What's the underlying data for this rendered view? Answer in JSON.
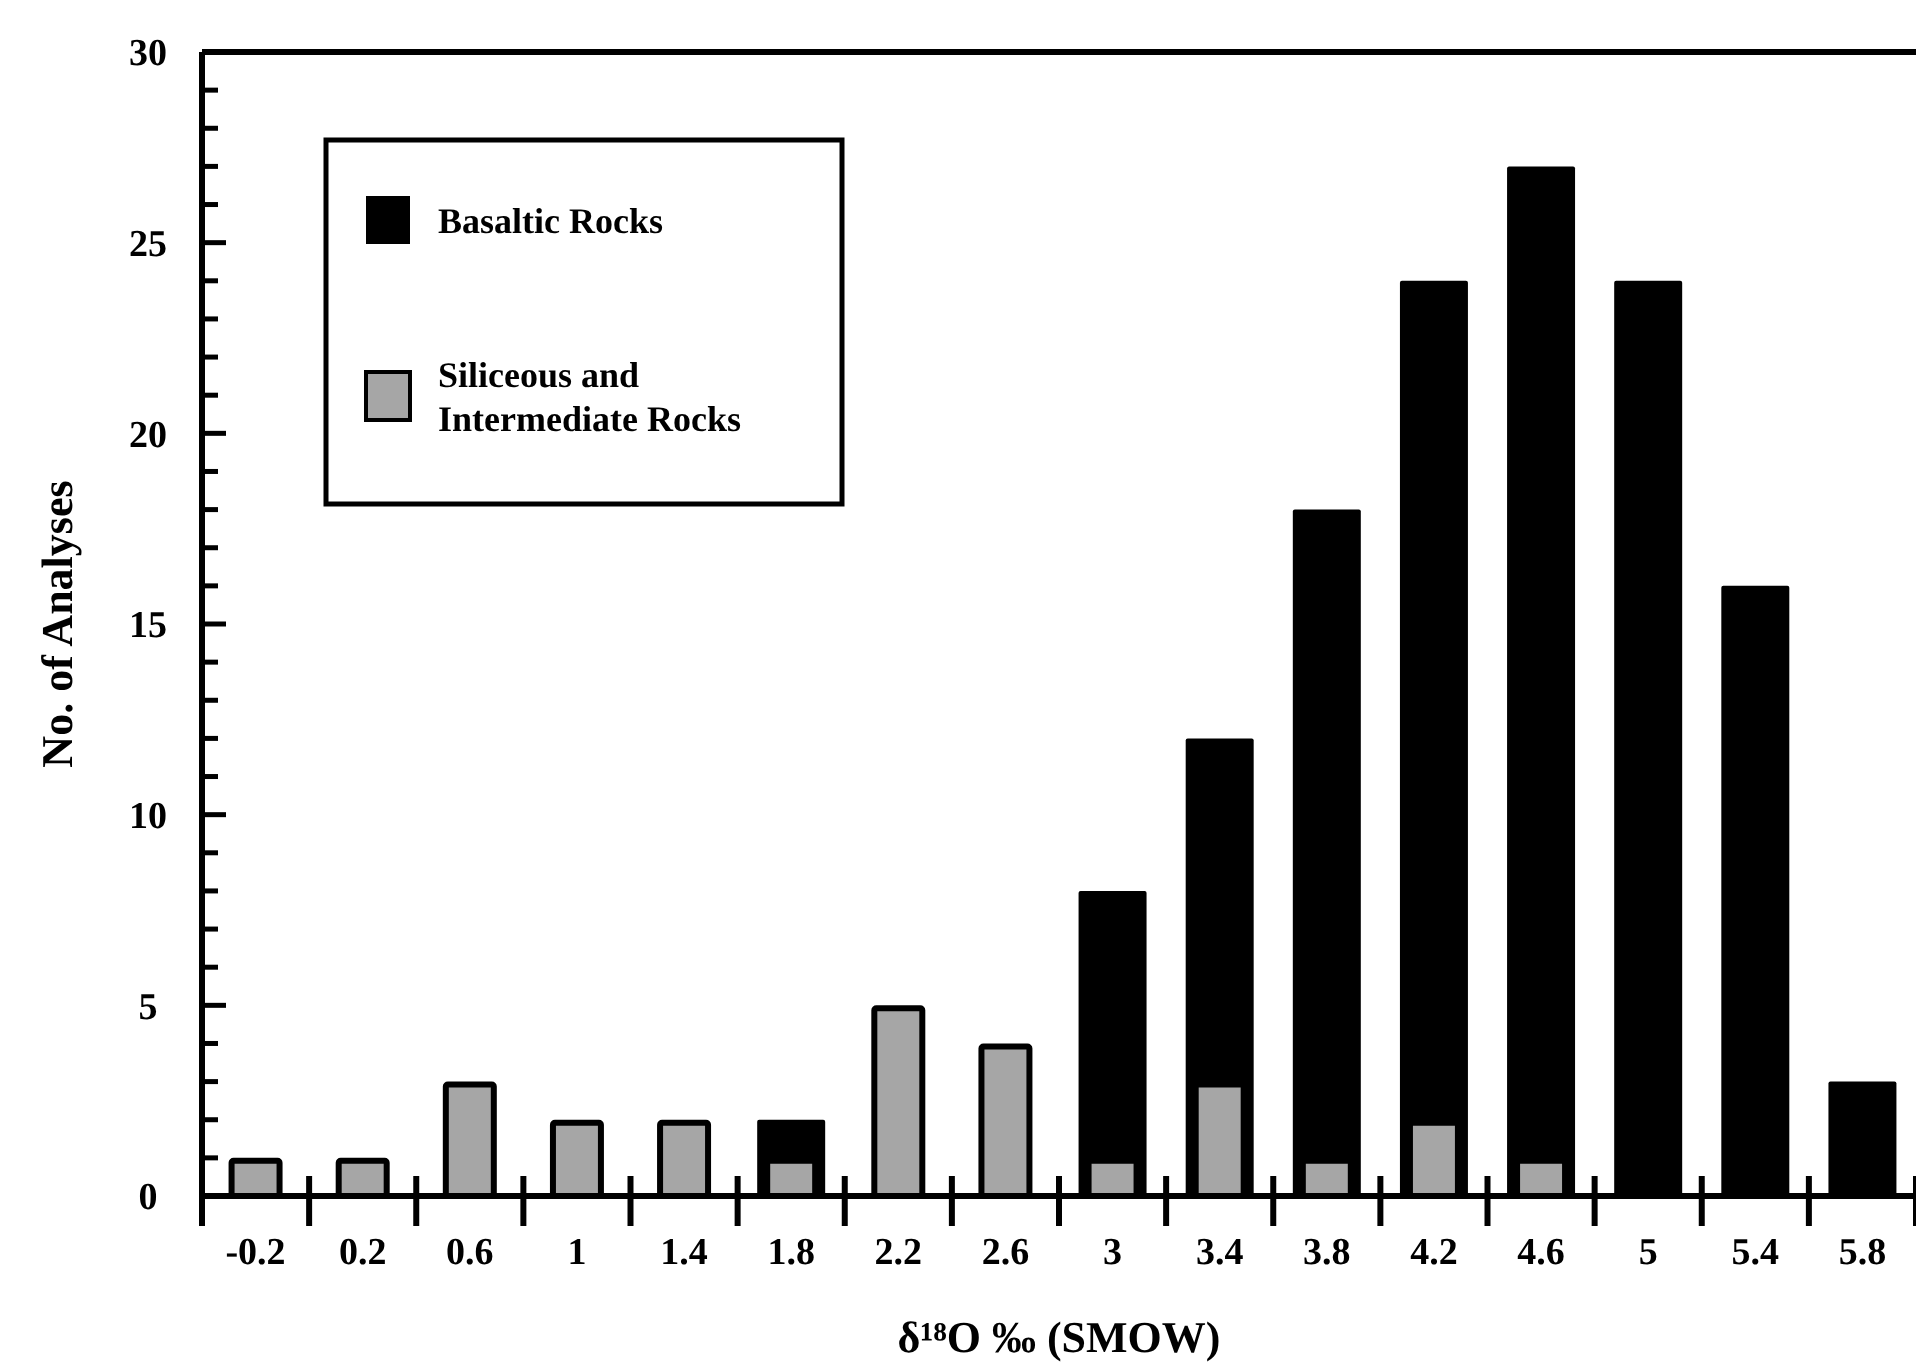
{
  "chart_data": {
    "type": "bar",
    "xlabel": "δ¹⁸O ‰ (SMOW)",
    "ylabel": "No. of Analyses",
    "categories": [
      "-0.2",
      "0.2",
      "0.6",
      "1",
      "1.4",
      "1.8",
      "2.2",
      "2.6",
      "3",
      "3.4",
      "3.8",
      "4.2",
      "4.6",
      "5",
      "5.4",
      "5.8"
    ],
    "series": [
      {
        "name": "Basaltic Rocks",
        "color": "#000000",
        "values": [
          null,
          null,
          null,
          null,
          null,
          2,
          null,
          null,
          8,
          12,
          18,
          24,
          27,
          24,
          16,
          3
        ]
      },
      {
        "name": "Siliceous and Intermediate Rocks",
        "color": "#a6a6a6",
        "values": [
          1,
          1,
          3,
          2,
          2,
          1,
          5,
          4,
          1,
          3,
          1,
          2,
          1,
          null,
          null,
          null
        ]
      }
    ],
    "ylim": [
      0,
      30
    ],
    "yticks": [
      0,
      5,
      10,
      15,
      20,
      25,
      30
    ],
    "grid": false,
    "legend": "top left"
  }
}
